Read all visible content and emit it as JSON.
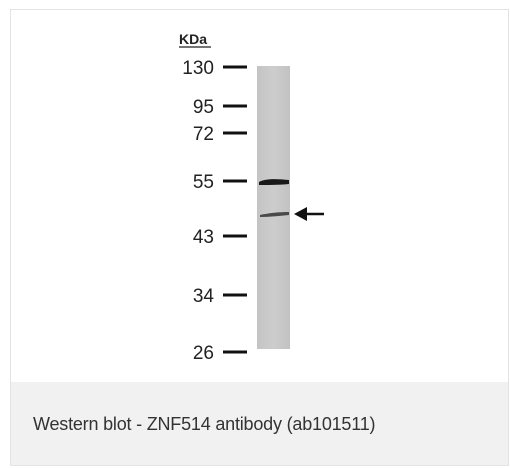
{
  "figure": {
    "unit_label": "KDa",
    "markers": [
      "130",
      "95",
      "72",
      "55",
      "43",
      "34",
      "26"
    ],
    "caption": "Western blot - ZNF514 antibody (ab101511)"
  }
}
